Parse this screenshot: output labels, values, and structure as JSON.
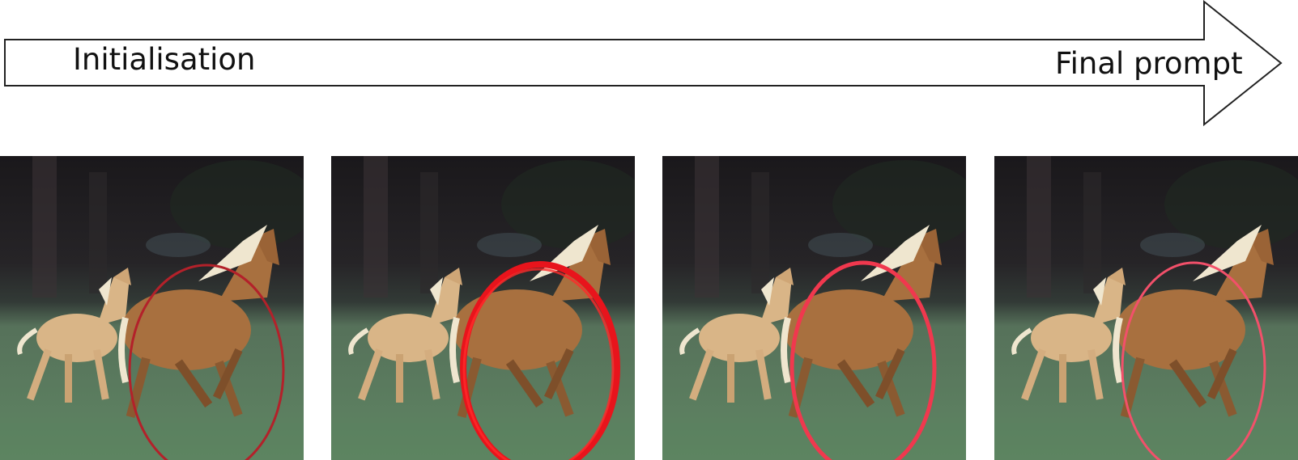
{
  "arrow": {
    "start_label": "Initialisation",
    "end_label": "Final prompt"
  },
  "panels": [
    {
      "name": "step-1",
      "ellipse_color": "#b3212a",
      "stroke_style": "thin-smooth",
      "subjects": [
        "foal",
        "horse"
      ]
    },
    {
      "name": "step-2",
      "ellipse_color": "#e8141c",
      "stroke_style": "thick-rough",
      "subjects": [
        "foal",
        "horse"
      ]
    },
    {
      "name": "step-3",
      "ellipse_color": "#f0384e",
      "stroke_style": "medium",
      "subjects": [
        "foal",
        "horse"
      ]
    },
    {
      "name": "step-4",
      "ellipse_color": "#f2506a",
      "stroke_style": "thin",
      "subjects": [
        "foal",
        "horse"
      ]
    }
  ],
  "colors": {
    "forest": "#1c1a1c",
    "grass": "#5b7d5e",
    "horse_coat": "#a8703f",
    "foal_coat": "#d9b587",
    "mane": "#efe6cf"
  }
}
